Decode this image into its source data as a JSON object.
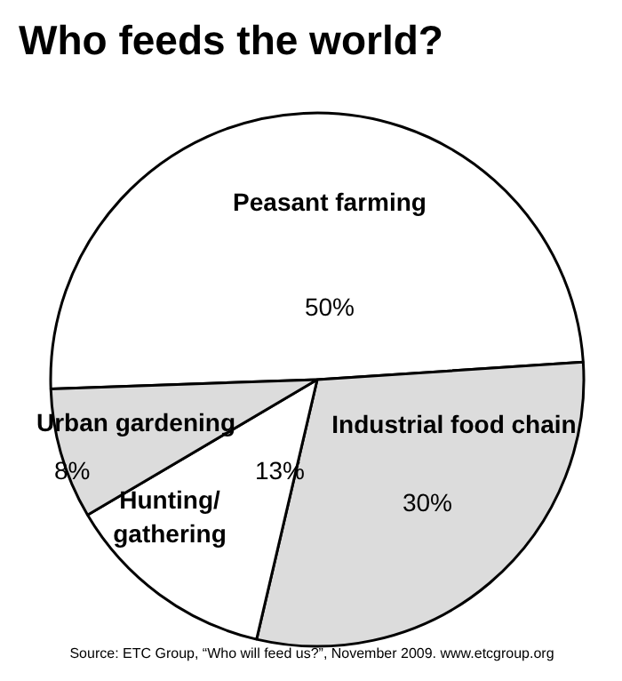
{
  "chart_data": {
    "type": "pie",
    "title": "Who feeds the world?",
    "categories": [
      "Peasant farming",
      "Industrial food chain",
      "Hunting/\ngathering",
      "Urban gardening"
    ],
    "values": [
      50,
      30,
      13,
      8
    ],
    "value_labels": [
      "50%",
      "30%",
      "13%",
      "8%"
    ],
    "colors": [
      "#ffffff",
      "#dcdcdc",
      "#ffffff",
      "#dcdcdc"
    ],
    "annotations": [
      "Source: ETC Group, “Who will feed us?”, November 2009. www.etcgroup.org"
    ]
  }
}
